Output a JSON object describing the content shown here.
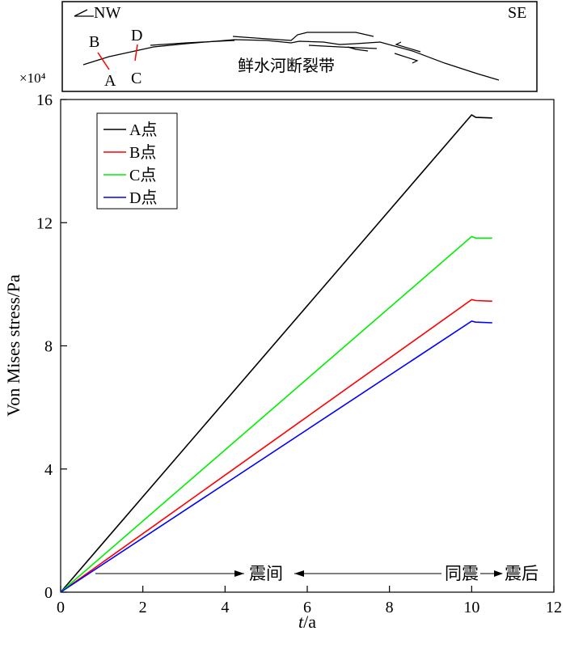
{
  "chart_data": {
    "type": "line",
    "title": "",
    "xlabel_italic": "t",
    "xlabel_rest": "/a",
    "ylabel": "Von Mises stress/Pa",
    "y_multiplier": "×10⁴",
    "xlim": [
      0,
      12
    ],
    "ylim": [
      0,
      16
    ],
    "x_ticks": [
      0,
      2,
      4,
      6,
      8,
      10,
      12
    ],
    "y_ticks": [
      0,
      4,
      8,
      12,
      16
    ],
    "grid": false,
    "legend_position": "top-left",
    "series": [
      {
        "name": "A点",
        "color": "#000000",
        "x": [
          0,
          10,
          10.1,
          10.5
        ],
        "y": [
          0,
          15.5,
          15.42,
          15.4
        ]
      },
      {
        "name": "B点",
        "color": "#ff0000",
        "x": [
          0,
          10,
          10.1,
          10.5
        ],
        "y": [
          0,
          9.5,
          9.47,
          9.45
        ]
      },
      {
        "name": "C点",
        "color": "#00ee00",
        "x": [
          0,
          10,
          10.1,
          10.5
        ],
        "y": [
          0,
          11.55,
          11.5,
          11.5
        ]
      },
      {
        "name": "D点",
        "color": "#0000ff",
        "x": [
          0,
          10,
          10.1,
          10.5
        ],
        "y": [
          0,
          8.8,
          8.77,
          8.75
        ]
      }
    ],
    "annotations": {
      "interseismic": "震间",
      "coseismic": "同震",
      "postseismic": "震后"
    },
    "inset": {
      "left_label": "NW",
      "right_label": "SE",
      "fault_name": "鲜水河断裂带",
      "point_b": "B",
      "point_a": "A",
      "point_d": "D",
      "point_c": "C"
    }
  }
}
